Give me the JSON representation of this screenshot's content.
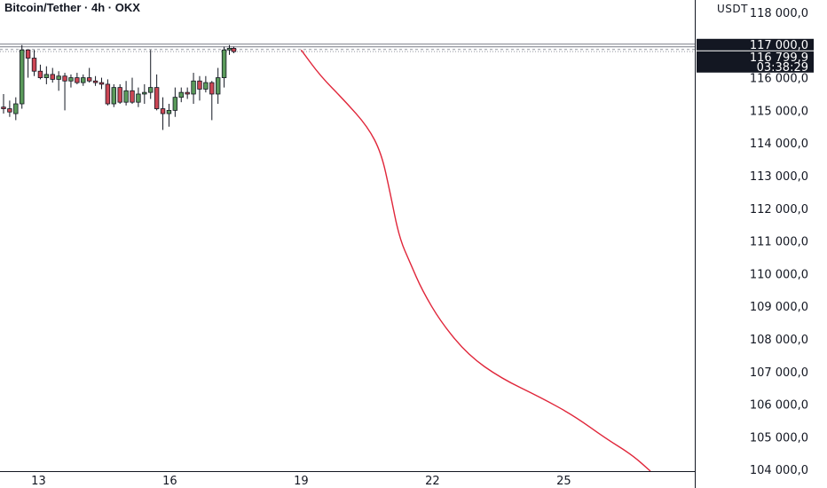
{
  "chart_data": {
    "type": "candlestick",
    "title": "Bitcoin/Tether · 4h · OKX",
    "unit": "USDT",
    "x_axis": {
      "ticks": [
        "13",
        "16",
        "19",
        "22",
        "25"
      ],
      "tick_day": [
        13,
        16,
        19,
        22,
        25
      ],
      "range_day": [
        12.2,
        26.98
      ]
    },
    "y_axis": {
      "range": [
        103950,
        118380
      ],
      "ticks": [
        "118 000,0",
        "117 000,0",
        "116 000,0",
        "115 000,0",
        "114 000,0",
        "113 000,0",
        "112 000,0",
        "111 000,0",
        "110 000,0",
        "109 000,0",
        "108 000,0",
        "107 000,0",
        "106 000,0",
        "105 000,0",
        "104 000,0"
      ],
      "tick_values": [
        118000,
        117000,
        116000,
        115000,
        114000,
        113000,
        112000,
        111000,
        110000,
        109000,
        108000,
        107000,
        106000,
        105000,
        104000
      ]
    },
    "colors": {
      "up": "#5a9a5a",
      "down": "#cc4654",
      "projection": "#e0263a",
      "tag": "#131722"
    },
    "horizontal_levels": [
      117000,
      116970
    ],
    "last_price": 116799.9,
    "price_tags": [
      {
        "label": "117 000,0",
        "value": 117000
      },
      {
        "label": "116 799,9",
        "value": 116799.9
      },
      {
        "label": "03:38:29",
        "value": 116560
      }
    ],
    "candles": [
      {
        "day": 12.2,
        "o": 115100,
        "h": 115500,
        "l": 114900,
        "c": 115050
      },
      {
        "day": 12.34,
        "o": 115050,
        "h": 115300,
        "l": 114800,
        "c": 114950
      },
      {
        "day": 12.48,
        "o": 114900,
        "h": 115400,
        "l": 114700,
        "c": 115200
      },
      {
        "day": 12.62,
        "o": 115200,
        "h": 117000,
        "l": 115050,
        "c": 116850
      },
      {
        "day": 12.76,
        "o": 116850,
        "h": 116850,
        "l": 116000,
        "c": 116600
      },
      {
        "day": 12.9,
        "o": 116600,
        "h": 116850,
        "l": 116050,
        "c": 116200
      },
      {
        "day": 13.04,
        "o": 116200,
        "h": 116400,
        "l": 115950,
        "c": 116000
      },
      {
        "day": 13.18,
        "o": 116000,
        "h": 116350,
        "l": 115800,
        "c": 116100
      },
      {
        "day": 13.32,
        "o": 116100,
        "h": 116300,
        "l": 115850,
        "c": 115950
      },
      {
        "day": 13.46,
        "o": 115950,
        "h": 116200,
        "l": 115600,
        "c": 116050
      },
      {
        "day": 13.6,
        "o": 116050,
        "h": 116150,
        "l": 115000,
        "c": 115900
      },
      {
        "day": 13.74,
        "o": 115900,
        "h": 116100,
        "l": 115700,
        "c": 116000
      },
      {
        "day": 13.88,
        "o": 116000,
        "h": 116150,
        "l": 115800,
        "c": 115850
      },
      {
        "day": 14.02,
        "o": 115850,
        "h": 116100,
        "l": 115750,
        "c": 116000
      },
      {
        "day": 14.16,
        "o": 116000,
        "h": 116300,
        "l": 115850,
        "c": 115900
      },
      {
        "day": 14.3,
        "o": 115900,
        "h": 116050,
        "l": 115750,
        "c": 115850
      },
      {
        "day": 14.44,
        "o": 115850,
        "h": 116000,
        "l": 115650,
        "c": 115800
      },
      {
        "day": 14.58,
        "o": 115800,
        "h": 115950,
        "l": 115150,
        "c": 115200
      },
      {
        "day": 14.72,
        "o": 115200,
        "h": 115800,
        "l": 115100,
        "c": 115700
      },
      {
        "day": 14.86,
        "o": 115700,
        "h": 115800,
        "l": 115200,
        "c": 115250
      },
      {
        "day": 15.0,
        "o": 115250,
        "h": 115900,
        "l": 115150,
        "c": 115600
      },
      {
        "day": 15.14,
        "o": 115600,
        "h": 116000,
        "l": 115200,
        "c": 115250
      },
      {
        "day": 15.28,
        "o": 115250,
        "h": 115700,
        "l": 115100,
        "c": 115500
      },
      {
        "day": 15.42,
        "o": 115500,
        "h": 115800,
        "l": 115200,
        "c": 115550
      },
      {
        "day": 15.56,
        "o": 115550,
        "h": 116850,
        "l": 115350,
        "c": 115700
      },
      {
        "day": 15.7,
        "o": 115700,
        "h": 116100,
        "l": 115000,
        "c": 115050
      },
      {
        "day": 15.84,
        "o": 115050,
        "h": 115400,
        "l": 114400,
        "c": 114900
      },
      {
        "day": 15.98,
        "o": 114900,
        "h": 115200,
        "l": 114500,
        "c": 115000
      },
      {
        "day": 16.12,
        "o": 115000,
        "h": 115700,
        "l": 114800,
        "c": 115400
      },
      {
        "day": 16.26,
        "o": 115400,
        "h": 115700,
        "l": 115250,
        "c": 115550
      },
      {
        "day": 16.4,
        "o": 115550,
        "h": 115700,
        "l": 115350,
        "c": 115500
      },
      {
        "day": 16.54,
        "o": 115500,
        "h": 116150,
        "l": 115200,
        "c": 115900
      },
      {
        "day": 16.68,
        "o": 115900,
        "h": 116050,
        "l": 115300,
        "c": 115650
      },
      {
        "day": 16.82,
        "o": 115650,
        "h": 116050,
        "l": 115550,
        "c": 115850
      },
      {
        "day": 16.96,
        "o": 115850,
        "h": 115900,
        "l": 114700,
        "c": 115500
      },
      {
        "day": 17.1,
        "o": 115500,
        "h": 116300,
        "l": 115200,
        "c": 116000
      },
      {
        "day": 17.24,
        "o": 116000,
        "h": 116950,
        "l": 115700,
        "c": 116850
      },
      {
        "day": 17.36,
        "o": 116850,
        "h": 117000,
        "l": 116700,
        "c": 116900
      },
      {
        "day": 17.46,
        "o": 116900,
        "h": 116950,
        "l": 116750,
        "c": 116799.9
      }
    ],
    "projection": [
      {
        "day": 19.0,
        "v": 116850
      },
      {
        "day": 19.44,
        "v": 116050
      },
      {
        "day": 19.99,
        "v": 115300
      },
      {
        "day": 20.52,
        "v": 114500
      },
      {
        "day": 20.83,
        "v": 113700
      },
      {
        "day": 21.03,
        "v": 112500
      },
      {
        "day": 21.24,
        "v": 111100
      },
      {
        "day": 21.5,
        "v": 110300
      },
      {
        "day": 21.76,
        "v": 109500
      },
      {
        "day": 22.2,
        "v": 108500
      },
      {
        "day": 22.82,
        "v": 107500
      },
      {
        "day": 23.56,
        "v": 106800
      },
      {
        "day": 24.48,
        "v": 106200
      },
      {
        "day": 25.23,
        "v": 105650
      },
      {
        "day": 25.96,
        "v": 104950
      },
      {
        "day": 26.56,
        "v": 104450
      },
      {
        "day": 26.98,
        "v": 103950
      }
    ]
  }
}
